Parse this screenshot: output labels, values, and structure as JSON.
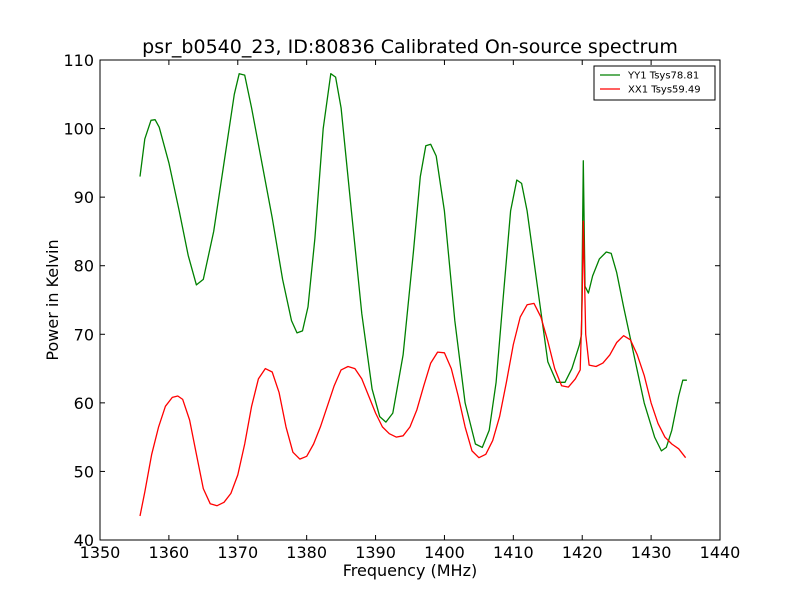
{
  "chart_data": {
    "type": "line",
    "title": "psr_b0540_23, ID:80836 Calibrated On-source spectrum",
    "xlabel": "Frequency (MHz)",
    "ylabel": "Power in Kelvin",
    "xlim": [
      1350,
      1440
    ],
    "ylim": [
      40,
      110
    ],
    "xticks": [
      1350,
      1360,
      1370,
      1380,
      1390,
      1400,
      1410,
      1420,
      1430,
      1440
    ],
    "yticks": [
      40,
      50,
      60,
      70,
      80,
      90,
      100,
      110
    ],
    "grid": false,
    "legend_position": "top-right",
    "series": [
      {
        "name": "YY1 Tsys78.81",
        "color": "#008000",
        "x": [
          1355.8,
          1356.5,
          1357.4,
          1358.0,
          1358.6,
          1360.0,
          1361.5,
          1362.8,
          1364.0,
          1365.0,
          1366.5,
          1368.0,
          1369.5,
          1370.2,
          1371.0,
          1372.0,
          1373.5,
          1375.0,
          1376.5,
          1377.8,
          1378.6,
          1379.4,
          1380.2,
          1381.2,
          1382.4,
          1383.5,
          1384.2,
          1385.0,
          1386.5,
          1388.0,
          1389.5,
          1390.6,
          1391.5,
          1392.5,
          1394.0,
          1395.5,
          1396.5,
          1397.3,
          1398.0,
          1398.8,
          1400.0,
          1401.5,
          1403.0,
          1404.5,
          1405.5,
          1406.5,
          1407.5,
          1408.5,
          1409.6,
          1410.5,
          1411.2,
          1412.0,
          1413.5,
          1415.0,
          1416.3,
          1417.5,
          1418.5,
          1419.6,
          1419.9,
          1420.15,
          1420.4,
          1420.9,
          1421.5,
          1422.5,
          1423.5,
          1424.2,
          1425.0,
          1426.0,
          1427.5,
          1429.0,
          1430.5,
          1431.5,
          1432.2,
          1433.0,
          1434.0,
          1434.6,
          1435.2
        ],
        "values": [
          93.0,
          98.5,
          101.2,
          101.3,
          100.2,
          95.0,
          88.0,
          81.5,
          77.2,
          78.0,
          85.0,
          95.0,
          105.0,
          108.0,
          107.8,
          103.0,
          95.0,
          87.0,
          78.0,
          72.0,
          70.2,
          70.5,
          74.0,
          84.0,
          100.0,
          108.0,
          107.5,
          103.0,
          88.0,
          73.0,
          62.0,
          58.0,
          57.2,
          58.5,
          67.0,
          82.0,
          93.0,
          97.5,
          97.7,
          96.0,
          88.0,
          72.0,
          60.0,
          54.0,
          53.5,
          56.0,
          63.0,
          75.0,
          88.0,
          92.5,
          92.0,
          88.0,
          77.0,
          66.0,
          63.0,
          63.0,
          65.0,
          68.5,
          70.0,
          95.3,
          77.0,
          76.0,
          78.5,
          81.0,
          82.0,
          81.8,
          79.0,
          74.0,
          67.0,
          60.0,
          55.0,
          53.0,
          53.5,
          56.0,
          61.0,
          63.3,
          63.3
        ]
      },
      {
        "name": "XX1 Tsys59.49",
        "color": "#ff0000",
        "x": [
          1355.8,
          1356.5,
          1357.5,
          1358.5,
          1359.5,
          1360.5,
          1361.3,
          1362.0,
          1363.0,
          1364.0,
          1365.0,
          1366.0,
          1367.0,
          1368.0,
          1369.0,
          1370.0,
          1371.0,
          1372.0,
          1373.0,
          1374.0,
          1375.0,
          1376.0,
          1377.0,
          1378.0,
          1379.0,
          1380.0,
          1381.0,
          1382.0,
          1383.0,
          1384.0,
          1385.0,
          1386.0,
          1387.0,
          1388.0,
          1389.0,
          1390.0,
          1391.0,
          1392.0,
          1393.0,
          1394.0,
          1395.0,
          1396.0,
          1397.0,
          1398.0,
          1399.0,
          1400.0,
          1401.0,
          1402.0,
          1403.0,
          1404.0,
          1405.0,
          1406.0,
          1407.0,
          1408.0,
          1409.0,
          1410.0,
          1411.0,
          1412.0,
          1413.0,
          1414.0,
          1415.0,
          1416.0,
          1417.0,
          1418.0,
          1419.0,
          1419.7,
          1420.0,
          1420.15,
          1420.5,
          1421.0,
          1422.0,
          1423.0,
          1424.0,
          1425.0,
          1426.0,
          1427.0,
          1428.0,
          1429.0,
          1430.0,
          1431.0,
          1432.0,
          1433.0,
          1434.0,
          1435.0
        ],
        "values": [
          43.5,
          47.0,
          52.5,
          56.5,
          59.5,
          60.8,
          61.0,
          60.5,
          57.5,
          52.5,
          47.5,
          45.3,
          45.0,
          45.5,
          46.8,
          49.5,
          54.0,
          59.5,
          63.5,
          65.0,
          64.5,
          61.5,
          56.5,
          52.8,
          51.8,
          52.2,
          54.0,
          56.5,
          59.5,
          62.5,
          64.8,
          65.3,
          65.0,
          63.5,
          61.0,
          58.5,
          56.5,
          55.5,
          55.0,
          55.2,
          56.5,
          59.0,
          62.5,
          65.8,
          67.4,
          67.3,
          65.0,
          61.0,
          56.5,
          53.0,
          52.0,
          52.5,
          54.5,
          58.0,
          63.0,
          68.5,
          72.5,
          74.3,
          74.5,
          72.5,
          69.0,
          65.0,
          62.5,
          62.3,
          63.5,
          64.8,
          75.0,
          86.5,
          70.0,
          65.5,
          65.3,
          65.8,
          67.0,
          68.8,
          69.8,
          69.2,
          67.0,
          64.0,
          60.0,
          57.0,
          55.0,
          54.0,
          53.3,
          52.0
        ]
      }
    ]
  }
}
